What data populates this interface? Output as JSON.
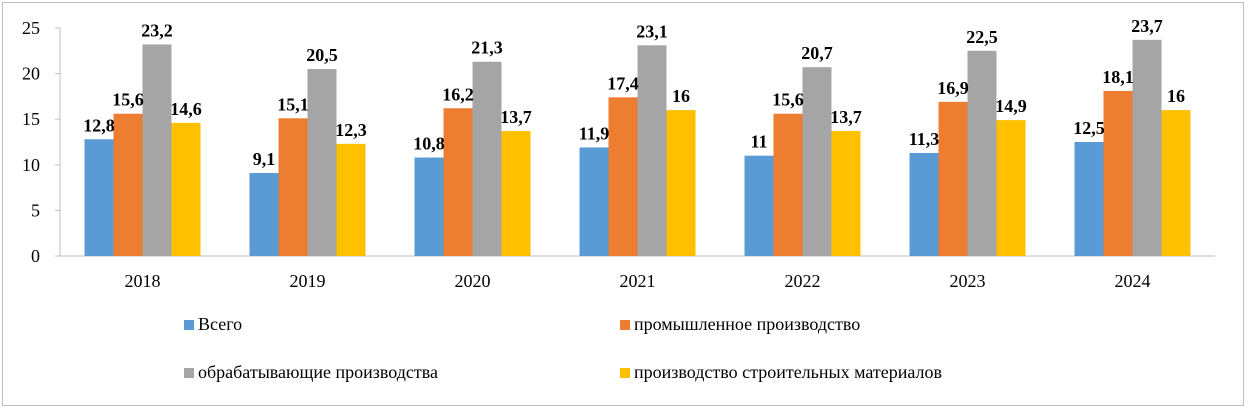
{
  "chart_data": {
    "type": "bar",
    "categories": [
      "2018",
      "2019",
      "2020",
      "2021",
      "2022",
      "2023",
      "2024"
    ],
    "series": [
      {
        "name": "Всего",
        "color": "#5b9bd5",
        "values": [
          12.8,
          9.1,
          10.8,
          11.9,
          11,
          11.3,
          12.5
        ],
        "labels": [
          "12,8",
          "9,1",
          "10,8",
          "11,9",
          "11",
          "11,3",
          "12,5"
        ]
      },
      {
        "name": "промышленное производство",
        "color": "#ed7d31",
        "values": [
          15.6,
          15.1,
          16.2,
          17.4,
          15.6,
          16.9,
          18.1
        ],
        "labels": [
          "15,6",
          "15,1",
          "16,2",
          "17,4",
          "15,6",
          "16,9",
          "18,1"
        ]
      },
      {
        "name": "обрабатывающие производства",
        "color": "#a5a5a5",
        "values": [
          23.2,
          20.5,
          21.3,
          23.1,
          20.7,
          22.5,
          23.7
        ],
        "labels": [
          "23,2",
          "20,5",
          "21,3",
          "23,1",
          "20,7",
          "22,5",
          "23,7"
        ]
      },
      {
        "name": "производство строительных материалов",
        "color": "#ffc000",
        "values": [
          14.6,
          12.3,
          13.7,
          16,
          13.7,
          14.9,
          16
        ],
        "labels": [
          "14,6",
          "12,3",
          "13,7",
          "16",
          "13,7",
          "14,9",
          "16"
        ]
      }
    ],
    "ylim": [
      0,
      25
    ],
    "yticks": [
      "0",
      "5",
      "10",
      "15",
      "20",
      "25"
    ],
    "grid": false,
    "legend": "bottom",
    "title": "",
    "xlabel": "",
    "ylabel": ""
  }
}
